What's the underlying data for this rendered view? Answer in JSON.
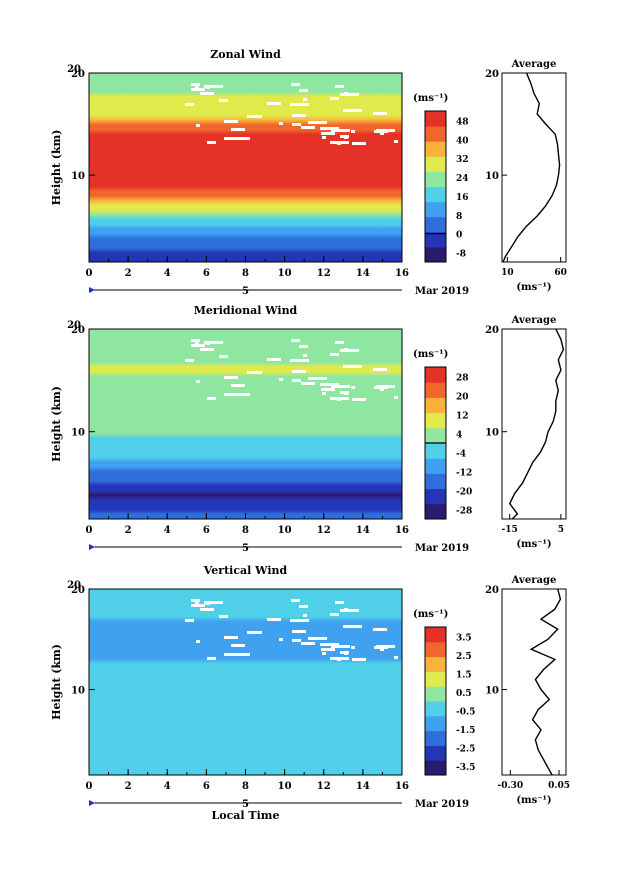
{
  "chart_data": [
    {
      "type": "heatmap",
      "title": "Zonal Wind",
      "xlabel": "",
      "ylabel": "Height (km)",
      "x_ticks": [
        "0",
        "2",
        "4",
        "6",
        "8",
        "10",
        "12",
        "14",
        "16"
      ],
      "y_ticks": [
        "10",
        "20"
      ],
      "xlim": [
        0,
        16
      ],
      "ylim": [
        1.5,
        20
      ],
      "date_marker": "5",
      "date_label": "Mar 2019",
      "colorbar": {
        "unit": "(ms⁻¹)",
        "tick_labels": [
          "48",
          "40",
          "32",
          "24",
          "16",
          "8",
          "0",
          "-8"
        ],
        "tick_values": [
          48,
          40,
          32,
          24,
          16,
          8,
          0,
          -8
        ],
        "range": [
          -12,
          52
        ],
        "zero_line": 0
      },
      "field_profile": {
        "heights": [
          1.5,
          2,
          3,
          4,
          5,
          6,
          7,
          8,
          9,
          10,
          11,
          12,
          13,
          14,
          15,
          16,
          17,
          18,
          19,
          20
        ],
        "values": [
          -4,
          -2,
          2,
          8,
          14,
          22,
          30,
          40,
          48,
          54,
          56,
          55,
          54,
          50,
          40,
          30,
          28,
          26,
          24,
          22
        ]
      },
      "average_profile": {
        "title": "Average",
        "xlabel": "(ms⁻¹)",
        "x_ticks": [
          "10",
          "60"
        ],
        "xlim": [
          5,
          65
        ],
        "y_ticks": [
          "10",
          "20"
        ],
        "heights": [
          1.5,
          2,
          3,
          4,
          5,
          6,
          7,
          8,
          9,
          10,
          11,
          12,
          13,
          14,
          15,
          16,
          17,
          18,
          19,
          20
        ],
        "values": [
          6,
          8,
          14,
          20,
          28,
          38,
          46,
          52,
          56,
          58,
          59,
          58,
          57,
          55,
          46,
          38,
          40,
          35,
          32,
          28
        ]
      }
    },
    {
      "type": "heatmap",
      "title": "Meridional Wind",
      "xlabel": "",
      "ylabel": "Height (km)",
      "x_ticks": [
        "0",
        "2",
        "4",
        "6",
        "8",
        "10",
        "12",
        "14",
        "16"
      ],
      "y_ticks": [
        "10",
        "20"
      ],
      "xlim": [
        0,
        16
      ],
      "ylim": [
        1.5,
        20
      ],
      "date_marker": "5",
      "date_label": "Mar 2019",
      "colorbar": {
        "unit": "(ms⁻¹)",
        "tick_labels": [
          "28",
          "20",
          "12",
          "4",
          "-4",
          "-12",
          "-20",
          "-28"
        ],
        "tick_values": [
          28,
          20,
          12,
          4,
          -4,
          -12,
          -20,
          -28
        ],
        "range": [
          -32,
          32
        ],
        "zero_line": 0
      },
      "field_profile": {
        "heights": [
          1.5,
          2,
          3,
          4,
          5,
          6,
          7,
          8,
          9,
          10,
          11,
          12,
          13,
          14,
          15,
          16,
          17,
          18,
          19,
          20
        ],
        "values": [
          -14,
          -18,
          -24,
          -26,
          -20,
          -14,
          -8,
          -4,
          -1,
          1,
          2,
          3,
          4,
          5,
          6,
          7,
          6,
          4,
          2,
          1
        ]
      },
      "average_profile": {
        "title": "Average",
        "xlabel": "(ms⁻¹)",
        "x_ticks": [
          "-15",
          "5"
        ],
        "xlim": [
          -18,
          7
        ],
        "y_ticks": [
          "10",
          "20"
        ],
        "heights": [
          1.5,
          2,
          3,
          4,
          5,
          6,
          7,
          8,
          9,
          10,
          11,
          12,
          13,
          14,
          15,
          16,
          17,
          18,
          19,
          20
        ],
        "values": [
          -14,
          -12,
          -15,
          -13,
          -10,
          -8,
          -6,
          -3,
          -1,
          0,
          2,
          3,
          3,
          4,
          3,
          5,
          4,
          6,
          5,
          3
        ]
      }
    },
    {
      "type": "heatmap",
      "title": "Vertical Wind",
      "xlabel": "Local Time",
      "ylabel": "Height (km)",
      "x_ticks": [
        "0",
        "2",
        "4",
        "6",
        "8",
        "10",
        "12",
        "14",
        "16"
      ],
      "y_ticks": [
        "10",
        "20"
      ],
      "xlim": [
        0,
        16
      ],
      "ylim": [
        1.5,
        20
      ],
      "date_marker": "5",
      "date_label": "Mar 2019",
      "colorbar": {
        "unit": "(ms⁻¹)",
        "tick_labels": [
          "3.5",
          "2.5",
          "1.5",
          "0.5",
          "-0.5",
          "-1.5",
          "-2.5",
          "-3.5"
        ],
        "tick_values": [
          3.5,
          2.5,
          1.5,
          0.5,
          -0.5,
          -1.5,
          -2.5,
          -3.5
        ],
        "range": [
          -4,
          4
        ]
      },
      "field_profile": {
        "heights": [
          1.5,
          2,
          3,
          4,
          5,
          6,
          7,
          8,
          9,
          10,
          11,
          12,
          13,
          14,
          15,
          16,
          17,
          18,
          19,
          20
        ],
        "values": [
          -0.4,
          -0.5,
          -0.6,
          -0.7,
          -0.8,
          -0.6,
          -0.5,
          -0.5,
          -0.4,
          -0.5,
          -0.6,
          -0.7,
          -0.8,
          -0.9,
          -1.0,
          -0.9,
          -0.8,
          -0.6,
          -0.5,
          -0.4
        ]
      },
      "average_profile": {
        "title": "Average",
        "xlabel": "(ms⁻¹)",
        "x_ticks": [
          "-0.30",
          "0.05"
        ],
        "xlim": [
          -0.36,
          0.1
        ],
        "y_ticks": [
          "10",
          "20"
        ],
        "heights": [
          1.5,
          2,
          3,
          4,
          5,
          6,
          7,
          8,
          9,
          10,
          11,
          12,
          13,
          14,
          15,
          16,
          17,
          18,
          19,
          20
        ],
        "values": [
          0.0,
          -0.02,
          -0.06,
          -0.1,
          -0.12,
          -0.08,
          -0.14,
          -0.1,
          -0.02,
          -0.08,
          -0.12,
          -0.06,
          0.02,
          -0.15,
          -0.03,
          0.04,
          -0.08,
          0.02,
          0.06,
          0.04
        ]
      }
    }
  ],
  "colors": {
    "colormap": [
      "#2a1b6e",
      "#2436b7",
      "#2f6fdc",
      "#3fa1f0",
      "#4fd0e8",
      "#8fe6a0",
      "#e0ea4a",
      "#f9b33a",
      "#f0662c",
      "#e53127"
    ],
    "axis": "#000000",
    "missing": "#ffffff"
  }
}
